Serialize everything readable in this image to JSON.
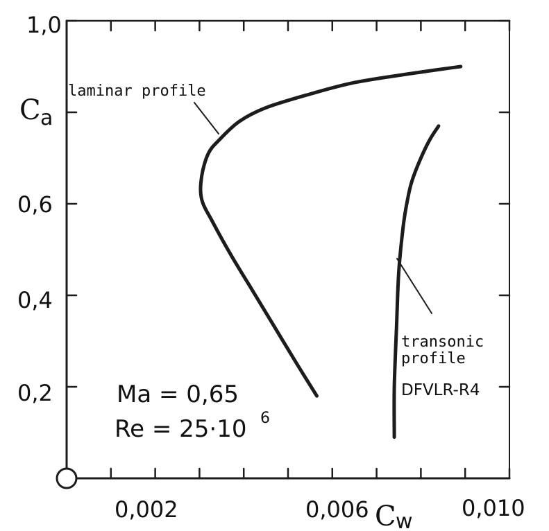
{
  "chart_data": {
    "type": "line",
    "title": "",
    "xlabel": "cw",
    "xlabel_parts": {
      "main": "C",
      "sub": "w"
    },
    "ylabel": "Ca",
    "ylabel_parts": {
      "main": "C",
      "sub": "a"
    },
    "xlim": [
      0,
      0.01
    ],
    "ylim": [
      0,
      1.0
    ],
    "x_ticks": [
      0.002,
      0.006,
      0.01
    ],
    "x_tick_labels": [
      "0,002",
      "0,006",
      "0,010"
    ],
    "y_ticks": [
      0.2,
      0.4,
      0.6,
      1.0
    ],
    "y_tick_labels": [
      "0,2",
      "0,4",
      "0,6",
      "1,0"
    ],
    "minor_x_ticks": [
      0.001,
      0.003,
      0.004,
      0.005,
      0.007,
      0.008,
      0.009
    ],
    "minor_y_ticks": [
      0.8
    ],
    "grid": false,
    "annotations": [
      "laminar profile",
      "transonic",
      "profile",
      "DFVLR-R4"
    ],
    "parameters": [
      "Ma = 0,65",
      "Re = 25·10",
      "6"
    ],
    "series": [
      {
        "points": [
          [
            0.00565,
            0.18
          ],
          [
            0.0052,
            0.25
          ],
          [
            0.0047,
            0.33
          ],
          [
            0.0042,
            0.41
          ],
          [
            0.0037,
            0.49
          ],
          [
            0.0033,
            0.56
          ],
          [
            0.00305,
            0.61
          ],
          [
            0.00305,
            0.66
          ],
          [
            0.0032,
            0.71
          ],
          [
            0.00345,
            0.74
          ],
          [
            0.0039,
            0.78
          ],
          [
            0.0045,
            0.81
          ],
          [
            0.0055,
            0.84
          ],
          [
            0.0065,
            0.865
          ],
          [
            0.0078,
            0.885
          ],
          [
            0.0089,
            0.9
          ]
        ]
      },
      {
        "points": [
          [
            0.0074,
            0.09
          ],
          [
            0.0074,
            0.2
          ],
          [
            0.00745,
            0.33
          ],
          [
            0.0075,
            0.45
          ],
          [
            0.0076,
            0.55
          ],
          [
            0.0077,
            0.61
          ],
          [
            0.0078,
            0.65
          ],
          [
            0.008,
            0.7
          ],
          [
            0.0082,
            0.74
          ],
          [
            0.0084,
            0.77
          ]
        ]
      }
    ]
  }
}
